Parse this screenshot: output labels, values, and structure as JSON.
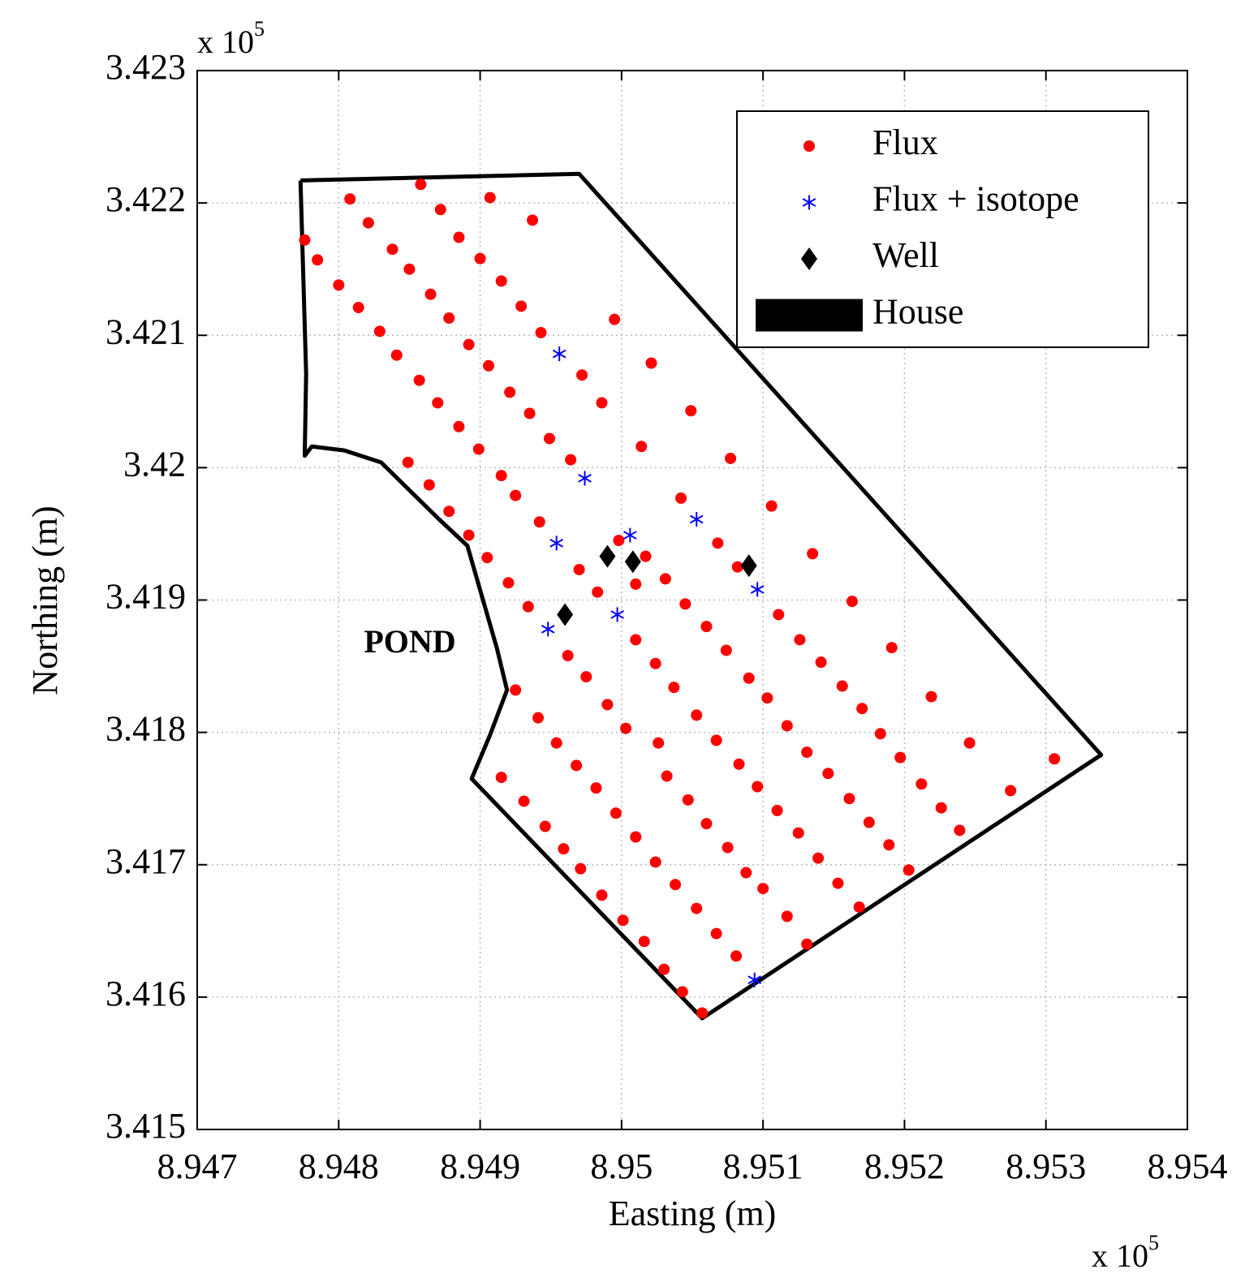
{
  "chart_data": {
    "type": "scatter",
    "xlabel": "Easting (m)",
    "ylabel": "Northing (m)",
    "x_multiplier": {
      "base": "x 10",
      "exponent": "5"
    },
    "y_multiplier": {
      "base": "x 10",
      "exponent": "5"
    },
    "annotations": [
      "POND"
    ],
    "xlim": [
      8.947,
      8.954
    ],
    "ylim": [
      3.415,
      3.423
    ],
    "xticks": [
      8.947,
      8.948,
      8.949,
      8.95,
      8.951,
      8.952,
      8.953,
      8.954
    ],
    "yticks": [
      3.415,
      3.416,
      3.417,
      3.418,
      3.419,
      3.42,
      3.421,
      3.422,
      3.423
    ],
    "grid": true,
    "legend": "upper right",
    "series": [
      {
        "name": "Flux",
        "color": "#ff0000",
        "marker": "circle",
        "x": [
          8.94808,
          8.94858,
          8.94907,
          8.94776,
          8.94821,
          8.94872,
          8.94937,
          8.94785,
          8.94838,
          8.94885,
          8.949,
          8.948,
          8.9485,
          8.94915,
          8.94814,
          8.94865,
          8.94929,
          8.94995,
          8.94829,
          8.94878,
          8.94943,
          8.94841,
          8.94892,
          8.94972,
          8.95021,
          8.94857,
          8.94906,
          8.94921,
          8.94986,
          8.9487,
          8.94935,
          8.95049,
          8.94885,
          8.94899,
          8.94949,
          8.95014,
          8.94849,
          8.94964,
          8.95077,
          8.94915,
          8.94864,
          8.94925,
          8.95042,
          8.95106,
          8.94878,
          8.94942,
          8.94892,
          8.94998,
          8.95068,
          8.95135,
          8.94905,
          8.95017,
          8.9497,
          8.95082,
          8.9492,
          8.94983,
          8.9501,
          8.95031,
          8.94934,
          8.95045,
          8.95163,
          8.95111,
          8.9506,
          8.9501,
          8.94962,
          8.95126,
          8.95074,
          8.95191,
          8.95024,
          8.94975,
          8.95141,
          8.9509,
          8.95037,
          8.94925,
          8.95156,
          8.9499,
          8.95103,
          8.95219,
          8.9517,
          8.94941,
          8.95053,
          8.95117,
          8.95003,
          8.95183,
          8.94954,
          8.95067,
          8.95246,
          8.95026,
          8.95131,
          8.95306,
          8.95197,
          8.95083,
          8.94968,
          8.94915,
          8.95032,
          8.95146,
          8.95212,
          8.95096,
          8.94982,
          8.94931,
          8.95047,
          8.95161,
          8.95226,
          8.95275,
          8.9511,
          8.94996,
          8.94946,
          8.9506,
          8.95175,
          8.95239,
          8.95125,
          8.9501,
          8.94959,
          8.95075,
          8.95189,
          8.95139,
          8.95024,
          8.94971,
          8.95088,
          8.95203,
          8.95153,
          8.95038,
          8.94986,
          8.951,
          8.95168,
          8.95053,
          8.95001,
          8.95117,
          8.95067,
          8.95016,
          8.95131,
          8.95081,
          8.9503,
          8.95043,
          8.95057
        ],
        "y": [
          3.42203,
          3.42214,
          3.42204,
          3.42172,
          3.42185,
          3.42195,
          3.42187,
          3.42157,
          3.42165,
          3.42174,
          3.42158,
          3.42138,
          3.4215,
          3.42141,
          3.42121,
          3.42131,
          3.42122,
          3.42112,
          3.42103,
          3.42113,
          3.42102,
          3.42085,
          3.42093,
          3.4207,
          3.42079,
          3.42066,
          3.42077,
          3.42057,
          3.42049,
          3.42049,
          3.42041,
          3.42043,
          3.42031,
          3.42014,
          3.42022,
          3.42016,
          3.42004,
          3.42006,
          3.42007,
          3.41994,
          3.41987,
          3.41979,
          3.41977,
          3.41971,
          3.41967,
          3.41959,
          3.41949,
          3.41945,
          3.41943,
          3.41935,
          3.41932,
          3.41933,
          3.41923,
          3.41925,
          3.41913,
          3.41906,
          3.41912,
          3.41916,
          3.41895,
          3.41897,
          3.41899,
          3.41889,
          3.4188,
          3.4187,
          3.41858,
          3.4187,
          3.41862,
          3.41864,
          3.41852,
          3.41842,
          3.41853,
          3.41841,
          3.41834,
          3.41832,
          3.41835,
          3.41821,
          3.41826,
          3.41827,
          3.41818,
          3.41811,
          3.41813,
          3.41805,
          3.41803,
          3.41799,
          3.41792,
          3.41794,
          3.41792,
          3.41792,
          3.41785,
          3.4178,
          3.41781,
          3.41776,
          3.41775,
          3.41766,
          3.41767,
          3.41769,
          3.41761,
          3.41759,
          3.41758,
          3.41748,
          3.41749,
          3.4175,
          3.41743,
          3.41756,
          3.41741,
          3.41739,
          3.41729,
          3.41731,
          3.41732,
          3.41726,
          3.41724,
          3.41721,
          3.41712,
          3.41713,
          3.41715,
          3.41705,
          3.41702,
          3.41697,
          3.41694,
          3.41696,
          3.41686,
          3.41685,
          3.41677,
          3.41682,
          3.41668,
          3.41667,
          3.41658,
          3.41661,
          3.41648,
          3.41642,
          3.4164,
          3.41631,
          3.41621,
          3.41604,
          3.41588
        ]
      },
      {
        "name": "Flux + isotope",
        "color": "#0000ff",
        "marker": "star",
        "x": [
          8.94956,
          8.94974,
          8.94954,
          8.95053,
          8.95006,
          8.95096,
          8.94997,
          8.94948,
          8.95094
        ],
        "y": [
          3.42086,
          3.41992,
          3.41943,
          3.41961,
          3.41949,
          3.41908,
          3.41889,
          3.41878,
          3.41613
        ]
      },
      {
        "name": "Well",
        "color": "#000000",
        "marker": "diamond",
        "x": [
          8.9499,
          8.95008,
          8.9509,
          8.9496
        ],
        "y": [
          3.41933,
          3.41929,
          3.41926,
          3.41889
        ]
      },
      {
        "name": "House",
        "color": "#000000",
        "marker": "rect",
        "x": [],
        "y": []
      }
    ],
    "outline": {
      "color": "#000000",
      "x": [
        8.94773,
        8.9497,
        8.95339,
        8.95057,
        8.94894,
        8.94907,
        8.94919,
        8.94912,
        8.94891,
        8.9487,
        8.9483,
        8.94804,
        8.94781,
        8.94776,
        8.94777,
        8.94773
      ],
      "y": [
        3.42217,
        3.42222,
        3.41783,
        3.41584,
        3.41765,
        3.41798,
        3.41832,
        3.41863,
        3.41941,
        3.41962,
        3.42004,
        3.42013,
        3.42016,
        3.42009,
        3.42071,
        3.42217
      ]
    }
  }
}
